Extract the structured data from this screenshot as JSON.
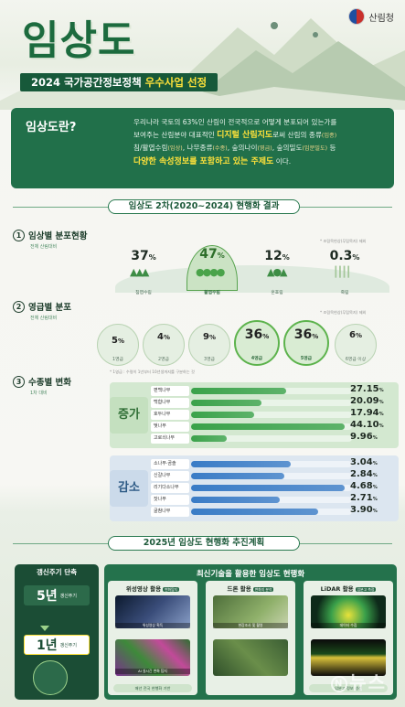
{
  "header": {
    "title": "임상도",
    "agency": "산림청",
    "banner_prefix": "2024 국가공간정보정책 ",
    "banner_highlight": "우수사업 선정"
  },
  "definition": {
    "question": "임상도란?",
    "line1": "우리나라 국토의 63%인 산림이 전국적으로 어떻게 분포되어 있는가를",
    "line2a": "보여주는 산림분야 대표적인 ",
    "line2b": "디지털 산림지도",
    "line2c": "로써 산림의 종류",
    "line2d": "(임종)",
    "line3a": "침/활엽수림",
    "line3b": "(임상)",
    "line3c": ", 나무종류",
    "line3d": "(수종)",
    "line3e": ", 숲의나이",
    "line3f": "(영급)",
    "line3g": ", 숲의밀도",
    "line3h": "(임분밀도)",
    "line3i": " 등",
    "line4a": "다양한 속성정보를 포함하고 있는 주제도",
    "line4b": "이다."
  },
  "results": {
    "heading": "임상도 2차(2020~2024) 현행화 결과",
    "g1": {
      "num": "1",
      "title": "임상별 분포현황",
      "caption": "전체 산림대비",
      "note": "* 조림목현상(무립목지) 제외",
      "items": [
        {
          "pct": "37",
          "label": "침엽수림"
        },
        {
          "pct": "47",
          "label": "활엽수림"
        },
        {
          "pct": "12",
          "label": "혼효림"
        },
        {
          "pct": "0.3",
          "label": "죽림"
        }
      ]
    },
    "g2": {
      "num": "2",
      "title": "영급별 분포",
      "caption": "전체 산림대비",
      "note": "* 조림목현상(무립목지) 제외",
      "note2": "* 1영급 : 수령이 1년부터 10년생까지를 구분하는 것",
      "items": [
        {
          "pct": "5",
          "label": "1영급"
        },
        {
          "pct": "4",
          "label": "2영급"
        },
        {
          "pct": "9",
          "label": "3영급"
        },
        {
          "pct": "36",
          "label": "4영급"
        },
        {
          "pct": "36",
          "label": "5영급"
        },
        {
          "pct": "6",
          "label": "6영급 이상"
        }
      ]
    },
    "g3": {
      "num": "3",
      "title": "수종별 변화",
      "caption": "1차 대비",
      "increase_label": "증가",
      "decrease_label": "감소",
      "increase": [
        {
          "name": "편백나무",
          "value": "27.15",
          "frac": 0.62
        },
        {
          "name": "백합나무",
          "value": "20.09",
          "frac": 0.46
        },
        {
          "name": "호두나무",
          "value": "17.94",
          "frac": 0.41
        },
        {
          "name": "벚나무",
          "value": "44.10",
          "frac": 1.0
        },
        {
          "name": "고로쇠나무",
          "value": "9.96",
          "frac": 0.23
        }
      ],
      "decrease": [
        {
          "name": "소나무·곰솔",
          "value": "3.04",
          "frac": 0.65
        },
        {
          "name": "신갈나무",
          "value": "2.84",
          "frac": 0.61
        },
        {
          "name": "리기다소나무",
          "value": "4.68",
          "frac": 1.0
        },
        {
          "name": "잣나무",
          "value": "2.71",
          "frac": 0.58
        },
        {
          "name": "굴참나무",
          "value": "3.90",
          "frac": 0.83
        }
      ],
      "unit": "%"
    }
  },
  "plan": {
    "heading": "2025년 임상도 현행화 추진계획",
    "left_title": "갱신주기 단축",
    "old_cycle": "5년",
    "new_cycle": "1년",
    "cycle_suffix": "갱신주기",
    "right_title": "최신기술을 활용한 임상도 현행화",
    "columns": [
      {
        "title": "위성영상",
        "suffix": " 활용",
        "tag": "변화탐지",
        "cap1": "위성영상 획득",
        "cap2": "AI 실시간 변화 탐지",
        "foot": "매년 전국 현행화 기반"
      },
      {
        "title": "드론",
        "suffix": " 활용",
        "tag": "변화지 분석",
        "cap1": "현장조사 및 촬영",
        "cap2": "",
        "foot": ""
      },
      {
        "title": "LiDAR",
        "suffix": " 활용",
        "tag": "임분고 측정",
        "cap1": "데이터 수집",
        "cap2": "",
        "foot": "임분고 정보 생성"
      }
    ],
    "watermark": "뉴스",
    "watermark_c": "N"
  },
  "colors": {
    "primary": "#1c6b3e",
    "accent": "#ffe23a",
    "increase": "#3aa24a",
    "decrease": "#3a7cc6"
  }
}
